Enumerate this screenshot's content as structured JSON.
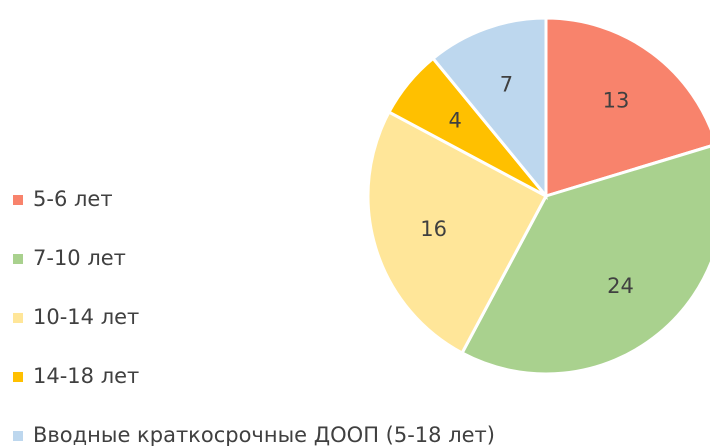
{
  "chart_data": {
    "type": "pie",
    "categories": [
      "5-6 лет",
      "7-10 лет",
      "10-14 лет",
      "14-18 лет",
      "Вводные краткосрочные ДООП (5-18 лет)"
    ],
    "values": [
      13,
      24,
      16,
      4,
      7
    ],
    "colors": [
      "#f8836c",
      "#a9d18e",
      "#ffe699",
      "#ffc000",
      "#bdd7ee"
    ],
    "legend": "left"
  }
}
